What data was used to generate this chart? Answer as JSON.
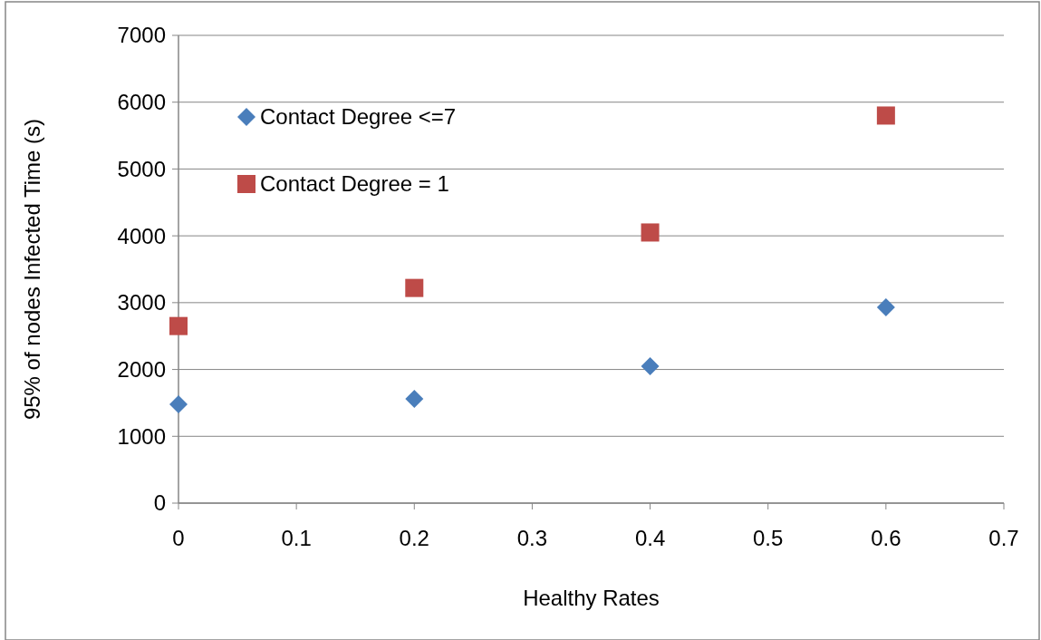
{
  "chart_data": {
    "type": "scatter",
    "xlabel": "Healthy Rates",
    "ylabel": "95% of nodes Infected Time (s)",
    "x": [
      0,
      0.2,
      0.4,
      0.6
    ],
    "series": [
      {
        "name": "Contact Degree <=7",
        "color": "#4a7ebb",
        "marker": "diamond",
        "values": [
          1480,
          1560,
          2050,
          2930
        ]
      },
      {
        "name": "Contact Degree = 1",
        "color": "#be4b48",
        "marker": "square",
        "values": [
          2650,
          3220,
          4050,
          5800
        ]
      }
    ],
    "xlim": [
      0,
      0.7
    ],
    "xticks": [
      0,
      0.1,
      0.2,
      0.3,
      0.4,
      0.5,
      0.6,
      0.7
    ],
    "ylim": [
      0,
      7000
    ],
    "yticks": [
      0,
      1000,
      2000,
      3000,
      4000,
      5000,
      6000,
      7000
    ],
    "grid": "y",
    "legend": "top left"
  }
}
